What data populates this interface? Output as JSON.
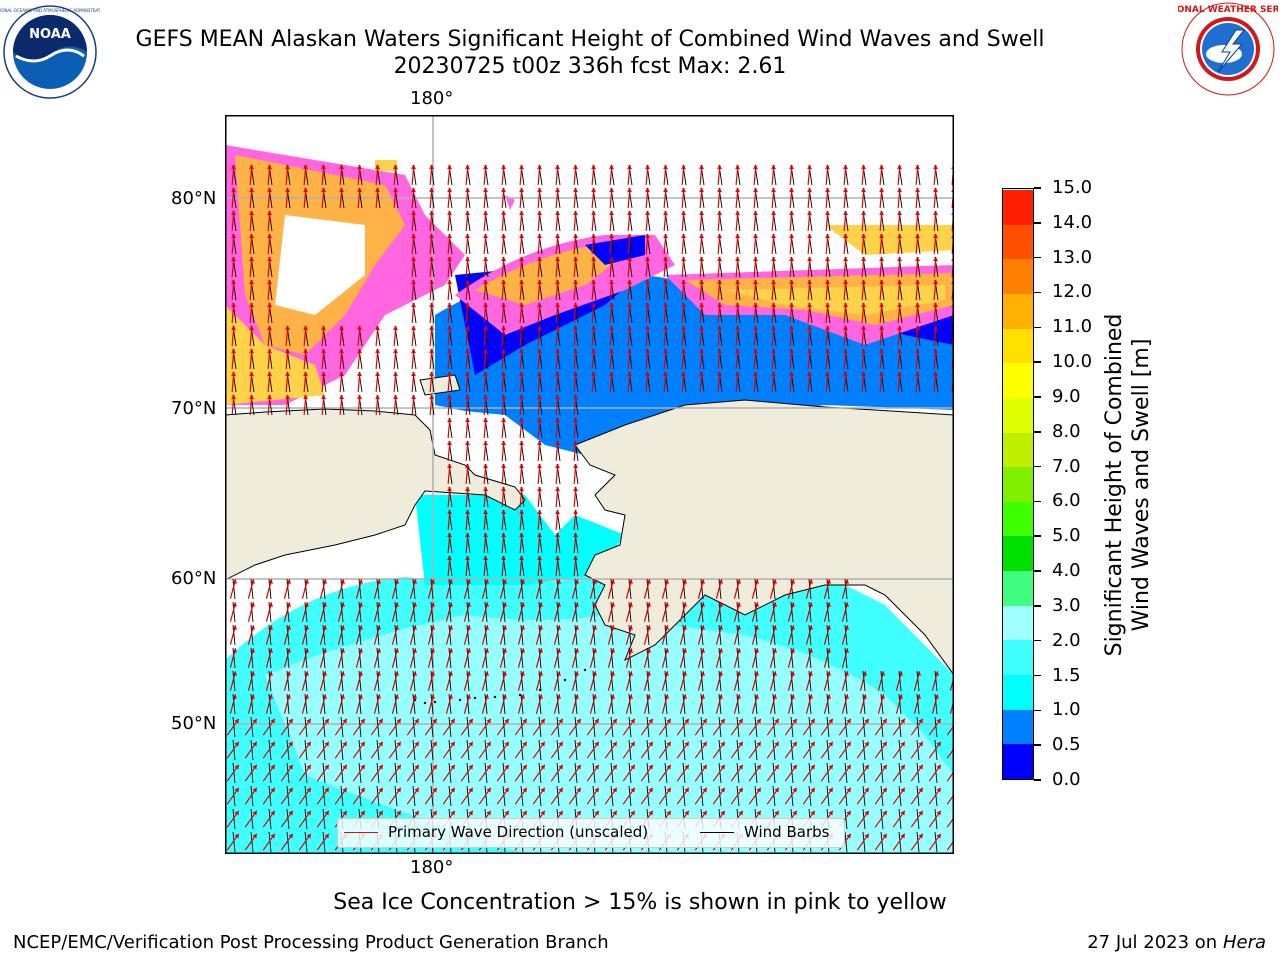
{
  "title_line1": "GEFS MEAN Alaskan Waters Significant Height of Combined Wind Waves and Swell",
  "title_line2": "20230725 t00z 336h fcst   Max: 2.61",
  "logos": {
    "left": "NOAA",
    "right_ring": "NATIONAL WEATHER SERVICE"
  },
  "map": {
    "top_lon_label": "180°",
    "bottom_lon_label": "180°",
    "lat_labels": [
      "80°N",
      "70°N",
      "60°N",
      "50°N"
    ],
    "colors": {
      "land": "#efecdc",
      "ice_pink": "#ff66e0",
      "ice_orange": "#ffb347",
      "ice_yellow": "#ffd24a",
      "gridline": "#b0b0b0"
    }
  },
  "legend": {
    "wave_dir": "Primary Wave Direction (unscaled)",
    "wind_barbs": "Wind Barbs",
    "wave_dir_color": "#ff0000",
    "wind_barb_color": "#000000"
  },
  "colorbar": {
    "label": "Significant Height of Combined Wind Waves and Swell [m]",
    "label_line1": "Significant Height of Combined",
    "label_line2": "Wind Waves and Swell [m]",
    "ticks": [
      "0.0",
      "0.5",
      "1.0",
      "1.5",
      "2.0",
      "3.0",
      "4.0",
      "5.0",
      "6.0",
      "7.0",
      "8.0",
      "9.0",
      "10.0",
      "11.0",
      "12.0",
      "13.0",
      "14.0",
      "15.0"
    ],
    "colors": [
      "#0000ff",
      "#0080ff",
      "#00ffff",
      "#40ffff",
      "#a0ffff",
      "#40ff80",
      "#00e000",
      "#40ff00",
      "#80f000",
      "#c0f000",
      "#e0ff00",
      "#ffff00",
      "#ffe000",
      "#ffb000",
      "#ff8000",
      "#ff5000",
      "#ff2000",
      "#ff0000"
    ]
  },
  "ice_note": "Sea Ice Concentration > 15% is shown in pink to yellow",
  "footer_left": "NCEP/EMC/Verification Post Processing Product Generation Branch",
  "footer_right_date": "27 Jul 2023 on ",
  "footer_right_machine": "Hera"
}
